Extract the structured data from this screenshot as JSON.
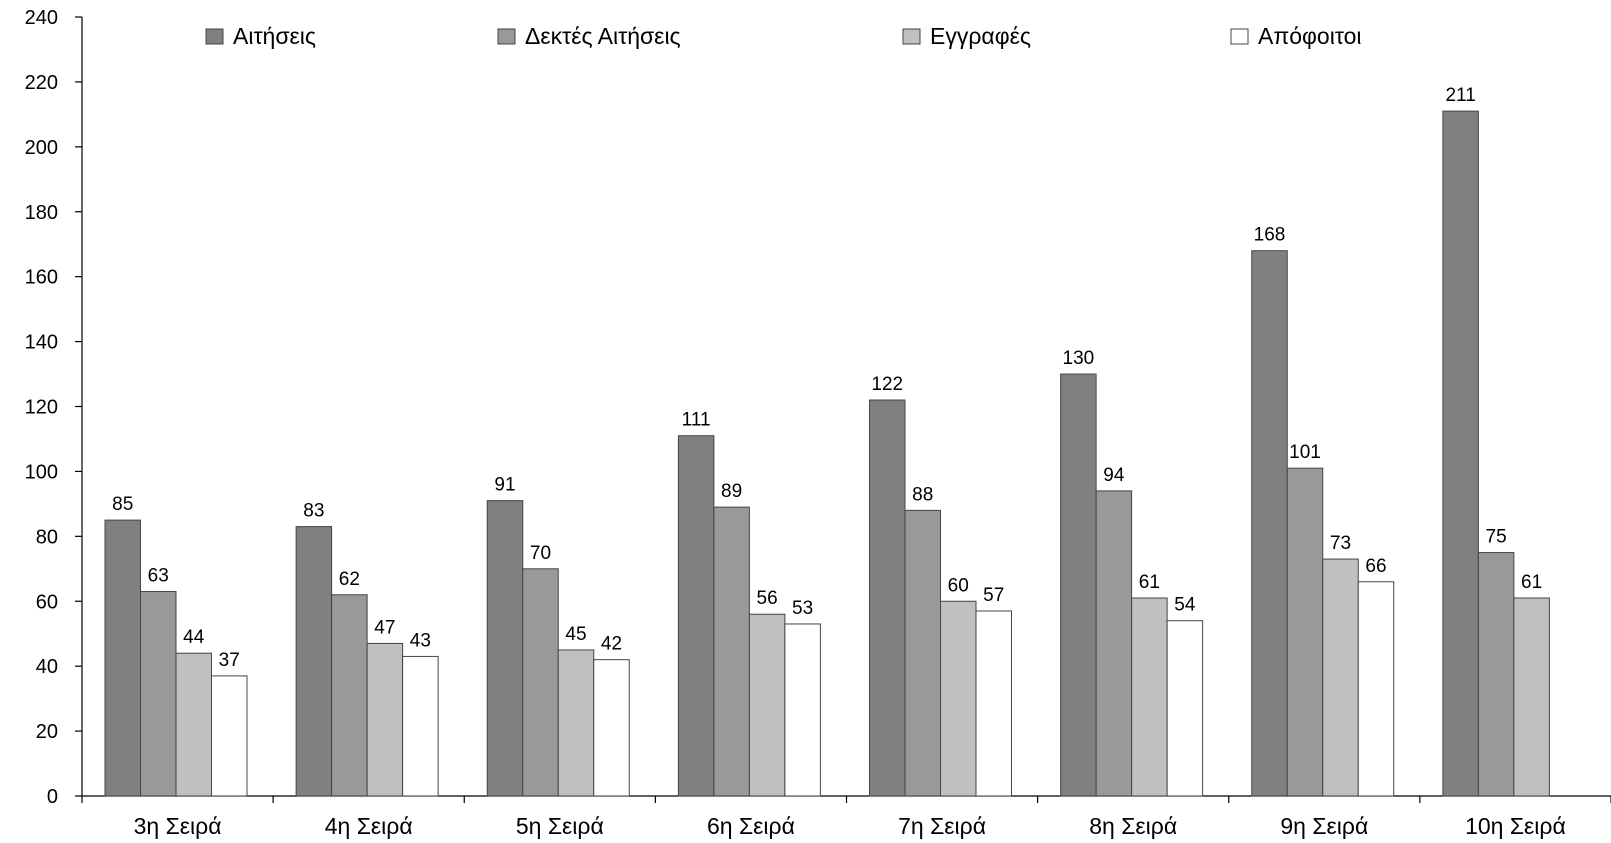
{
  "chart_data": {
    "type": "bar",
    "categories": [
      "3η Σειρά",
      "4η Σειρά",
      "5η Σειρά",
      "6η Σειρά",
      "7η Σειρά",
      "8η Σειρά",
      "9η Σειρά",
      "10η Σειρά"
    ],
    "series": [
      {
        "name": "Αιτήσεις",
        "color": "#808080",
        "values": [
          85,
          83,
          91,
          111,
          122,
          130,
          168,
          211
        ]
      },
      {
        "name": "Δεκτές Αιτήσεις",
        "color": "#999999",
        "values": [
          63,
          62,
          70,
          89,
          88,
          94,
          101,
          75
        ]
      },
      {
        "name": "Εγγραφές",
        "color": "#c0c0c0",
        "values": [
          44,
          47,
          45,
          56,
          60,
          61,
          73,
          61
        ]
      },
      {
        "name": "Απόφοιτοι",
        "color": "#ffffff",
        "values": [
          37,
          43,
          42,
          53,
          57,
          54,
          66,
          null
        ]
      }
    ],
    "ylim": [
      0,
      240
    ],
    "yticks": [
      0,
      20,
      40,
      60,
      80,
      100,
      120,
      140,
      160,
      180,
      200,
      220,
      240
    ],
    "legend": "top",
    "grid": false,
    "title": "",
    "xlabel": "",
    "ylabel": ""
  }
}
